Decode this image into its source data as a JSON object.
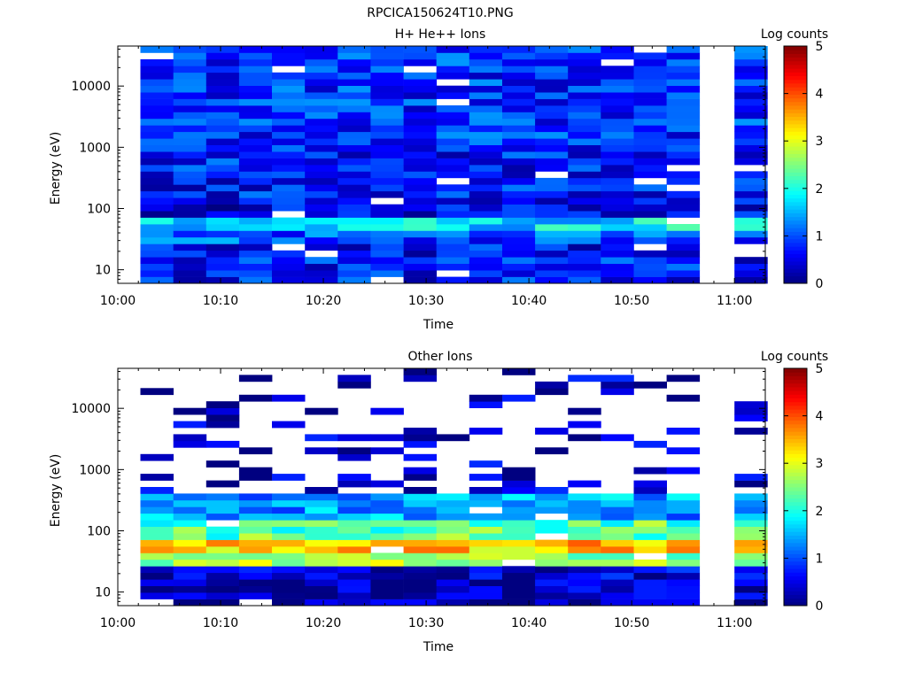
{
  "figure_title": "RPCICA150624T10.PNG",
  "chart_data": [
    {
      "type": "heatmap",
      "title": "H+ He++ Ions",
      "xlabel": "Time",
      "ylabel": "Energy (eV)",
      "x_ticks": [
        "10:00",
        "10:10",
        "10:20",
        "10:30",
        "10:40",
        "10:50",
        "11:00"
      ],
      "y_ticks": [
        "10",
        "100",
        "1000",
        "10000"
      ],
      "y_scale": "log",
      "ylim": [
        6,
        45000
      ],
      "colorbar": {
        "label": "Log counts",
        "ticks": [
          "0",
          "1",
          "2",
          "3",
          "4",
          "5"
        ],
        "range": [
          0,
          5
        ]
      },
      "time_range": [
        "10:00",
        "11:03"
      ],
      "columns": [
        {
          "start_min": 2.2,
          "end_min": 5.4
        },
        {
          "start_min": 5.4,
          "end_min": 8.6
        },
        {
          "start_min": 8.6,
          "end_min": 11.8
        },
        {
          "start_min": 11.8,
          "end_min": 15.0
        },
        {
          "start_min": 15.0,
          "end_min": 18.2
        },
        {
          "start_min": 18.2,
          "end_min": 21.4
        },
        {
          "start_min": 21.4,
          "end_min": 24.6
        },
        {
          "start_min": 24.6,
          "end_min": 27.8
        },
        {
          "start_min": 27.8,
          "end_min": 31.0
        },
        {
          "start_min": 31.0,
          "end_min": 34.2
        },
        {
          "start_min": 34.2,
          "end_min": 37.4
        },
        {
          "start_min": 37.4,
          "end_min": 40.6
        },
        {
          "start_min": 40.6,
          "end_min": 43.8
        },
        {
          "start_min": 43.8,
          "end_min": 47.0
        },
        {
          "start_min": 47.0,
          "end_min": 50.2
        },
        {
          "start_min": 50.2,
          "end_min": 53.4
        },
        {
          "start_min": 53.4,
          "end_min": 56.6
        },
        {
          "start_min": 60.0,
          "end_min": 63.2
        }
      ],
      "energy_bands_eV": [
        {
          "low": 6,
          "high": 15,
          "log_counts": 0.7
        },
        {
          "low": 15,
          "high": 25,
          "log_counts": 0.6
        },
        {
          "low": 25,
          "high": 40,
          "log_counts": 1.0
        },
        {
          "low": 40,
          "high": 70,
          "log_counts": 1.8
        },
        {
          "low": 70,
          "high": 150,
          "log_counts": 0.5
        },
        {
          "low": 150,
          "high": 1000,
          "log_counts": 0.7
        },
        {
          "low": 1000,
          "high": 45000,
          "log_counts": 0.85
        }
      ]
    },
    {
      "type": "heatmap",
      "title": "Other Ions",
      "xlabel": "Time",
      "ylabel": "Energy (eV)",
      "x_ticks": [
        "10:00",
        "10:10",
        "10:20",
        "10:30",
        "10:40",
        "10:50",
        "11:00"
      ],
      "y_ticks": [
        "10",
        "100",
        "1000",
        "10000"
      ],
      "y_scale": "log",
      "ylim": [
        6,
        45000
      ],
      "colorbar": {
        "label": "Log counts",
        "ticks": [
          "0",
          "1",
          "2",
          "3",
          "4",
          "5"
        ],
        "range": [
          0,
          5
        ]
      },
      "time_range": [
        "10:00",
        "11:03"
      ],
      "columns": [
        {
          "start_min": 2.2,
          "end_min": 5.4
        },
        {
          "start_min": 5.4,
          "end_min": 8.6
        },
        {
          "start_min": 8.6,
          "end_min": 11.8
        },
        {
          "start_min": 11.8,
          "end_min": 15.0
        },
        {
          "start_min": 15.0,
          "end_min": 18.2
        },
        {
          "start_min": 18.2,
          "end_min": 21.4
        },
        {
          "start_min": 21.4,
          "end_min": 24.6
        },
        {
          "start_min": 24.6,
          "end_min": 27.8
        },
        {
          "start_min": 27.8,
          "end_min": 31.0
        },
        {
          "start_min": 31.0,
          "end_min": 34.2
        },
        {
          "start_min": 34.2,
          "end_min": 37.4
        },
        {
          "start_min": 37.4,
          "end_min": 40.6
        },
        {
          "start_min": 40.6,
          "end_min": 43.8
        },
        {
          "start_min": 43.8,
          "end_min": 47.0
        },
        {
          "start_min": 47.0,
          "end_min": 50.2
        },
        {
          "start_min": 50.2,
          "end_min": 53.4
        },
        {
          "start_min": 53.4,
          "end_min": 56.6
        },
        {
          "start_min": 60.0,
          "end_min": 63.2
        }
      ],
      "energy_bands_eV": [
        {
          "low": 6,
          "high": 15,
          "log_counts": 0.25
        },
        {
          "low": 15,
          "high": 25,
          "log_counts": 0.4
        },
        {
          "low": 25,
          "high": 40,
          "log_counts": 2.6
        },
        {
          "low": 40,
          "high": 80,
          "log_counts": 3.4
        },
        {
          "low": 80,
          "high": 150,
          "log_counts": 2.3
        },
        {
          "low": 150,
          "high": 400,
          "log_counts": 1.4
        },
        {
          "low": 400,
          "high": 45000,
          "log_counts": 0.3
        }
      ]
    }
  ]
}
